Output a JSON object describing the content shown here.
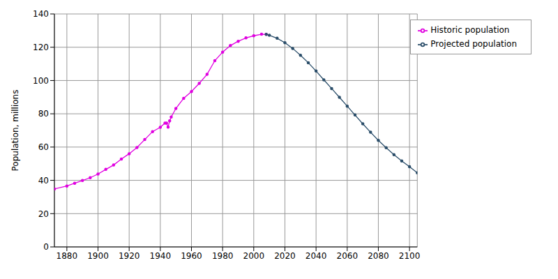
{
  "chart_data": {
    "type": "line",
    "y_label": "Population, millions",
    "xlim": [
      1872,
      2105
    ],
    "xticks": [
      1880,
      1900,
      1920,
      1940,
      1960,
      1980,
      2000,
      2020,
      2040,
      2060,
      2080,
      2100
    ],
    "ylim": [
      0,
      140
    ],
    "yticks": [
      0,
      20,
      40,
      60,
      80,
      100,
      120,
      140
    ],
    "grid": true,
    "legend": "upper right",
    "series": [
      {
        "name": "Historic population",
        "color": "#e000e0",
        "marker": "circle",
        "line_style": "solid",
        "x": [
          1872,
          1880,
          1885,
          1890,
          1895,
          1900,
          1905,
          1910,
          1915,
          1920,
          1925,
          1930,
          1935,
          1940,
          1943,
          1944,
          1945,
          1946,
          1947,
          1950,
          1955,
          1960,
          1965,
          1970,
          1975,
          1980,
          1985,
          1990,
          1995,
          2000,
          2005,
          2008
        ],
        "values": [
          34.8,
          36.6,
          38.3,
          39.9,
          41.6,
          43.8,
          46.6,
          49.2,
          52.8,
          56,
          59.7,
          64.5,
          69.3,
          71.9,
          74.4,
          74.4,
          72,
          75.8,
          78.1,
          83.2,
          89.3,
          93.4,
          98.3,
          103.7,
          111.9,
          117.1,
          121,
          123.6,
          125.6,
          126.9,
          127.8,
          127.7
        ]
      },
      {
        "name": "Projected population",
        "color": "#2a4d69",
        "marker": "circle",
        "line_style": "solid",
        "x": [
          2008,
          2010,
          2015,
          2020,
          2025,
          2030,
          2035,
          2040,
          2045,
          2050,
          2055,
          2060,
          2065,
          2070,
          2075,
          2080,
          2085,
          2090,
          2095,
          2100,
          2105
        ],
        "values": [
          127.7,
          127.2,
          125.4,
          122.7,
          119.3,
          115.2,
          110.7,
          105.7,
          100.4,
          95.2,
          89.9,
          84.6,
          79.3,
          74,
          68.9,
          64,
          59.6,
          55.4,
          51.7,
          48.2,
          44.5
        ]
      }
    ]
  }
}
